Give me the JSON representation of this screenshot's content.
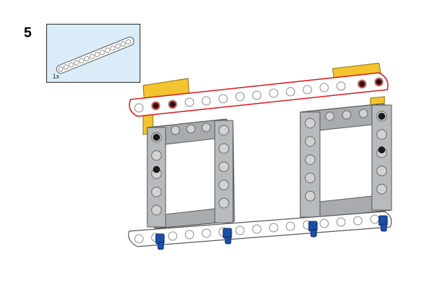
{
  "step": {
    "number": "5"
  },
  "callout": {
    "quantity": "1x",
    "part": "technic-beam-15"
  },
  "colors": {
    "beam_white": "#ffffff",
    "beam_outline": "#555555",
    "frame_gray": "#a9acaf",
    "frame_gray_dark": "#808488",
    "yellow": "#f4c430",
    "highlight_red": "#d82020",
    "pin_black": "#1a1a1a",
    "pin_blue": "#1a4fa8",
    "callout_bg": "#d9ecf8"
  }
}
